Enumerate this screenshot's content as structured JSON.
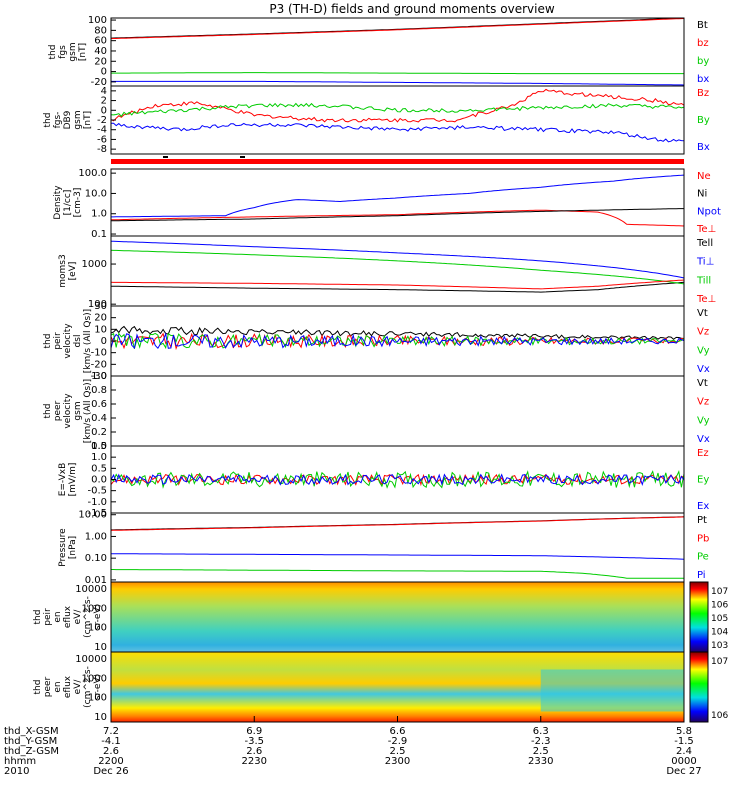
{
  "title": "P3 (TH-D) fields and ground moments overview",
  "colors": {
    "black": "#000000",
    "red": "#ff0000",
    "green": "#00cc00",
    "blue": "#0000ff",
    "darkred": "#8b0000"
  },
  "chart_data": [
    {
      "type": "line",
      "ylabel": [
        "thd",
        "fgs",
        "gsm",
        "[nT]"
      ],
      "yticks": [
        -20,
        0,
        20,
        40,
        60,
        80,
        100
      ],
      "ylim": [
        -28,
        104
      ],
      "series": [
        {
          "name": "Bt",
          "color": "#000000",
          "x": [
            0,
            1,
            2,
            3,
            4
          ],
          "y": [
            65,
            73,
            82,
            93,
            104
          ]
        },
        {
          "name": "bz",
          "color": "#ff0000",
          "x": [
            0,
            1,
            2,
            3,
            4
          ],
          "y": [
            64,
            72,
            81,
            92,
            103
          ]
        },
        {
          "name": "by",
          "color": "#00cc00",
          "x": [
            0,
            1,
            2,
            3,
            4
          ],
          "y": [
            -3,
            -2,
            -3,
            -4,
            -4
          ]
        },
        {
          "name": "bx",
          "color": "#0000ff",
          "x": [
            0,
            1,
            2,
            3,
            4
          ],
          "y": [
            -19,
            -19,
            -21,
            -23,
            -26
          ]
        }
      ]
    },
    {
      "type": "line",
      "ylabel": [
        "thd",
        "fgs-",
        "DB9",
        "gsm",
        "[nT]"
      ],
      "yticks": [
        -8,
        -6,
        -4,
        -2,
        0,
        2,
        4
      ],
      "ylim": [
        -9,
        5
      ],
      "series": [
        {
          "name": "Bz",
          "color": "#ff0000",
          "x": [
            0,
            0.3,
            0.6,
            1,
            1.5,
            2,
            2.4,
            2.8,
            3,
            3.4,
            3.8,
            4
          ],
          "y": [
            -2,
            1,
            1.5,
            -1,
            -2,
            -2,
            -2,
            1,
            4,
            3,
            2,
            1
          ]
        },
        {
          "name": "By",
          "color": "#00cc00",
          "x": [
            0,
            0.5,
            1,
            1.5,
            2,
            2.5,
            3,
            3.5,
            4
          ],
          "y": [
            -1,
            0,
            1,
            1,
            0,
            0,
            0.5,
            1,
            0.5
          ]
        },
        {
          "name": "Bx",
          "color": "#0000ff",
          "x": [
            0,
            0.5,
            0.8,
            1.2,
            2,
            2.5,
            3,
            3.5,
            3.8,
            4
          ],
          "y": [
            -3,
            -4,
            -3,
            -3,
            -4,
            -3.5,
            -4,
            -4.5,
            -6,
            -6.5
          ]
        }
      ]
    },
    {
      "type": "line",
      "ylabel": [
        "Density",
        "[1/cc]",
        "[cm-3]"
      ],
      "yticks": [
        "0.1",
        "1.0",
        "10.0",
        "100.0"
      ],
      "ylim": [
        0.08,
        160
      ],
      "log": true,
      "series": [
        {
          "name": "Ne",
          "color": "#ff0000",
          "x": [
            0,
            1,
            2,
            3,
            3.4,
            3.6,
            4
          ],
          "y": [
            0.5,
            0.7,
            0.9,
            1.5,
            1.2,
            0.3,
            0.25
          ]
        },
        {
          "name": "Ni",
          "color": "#000000",
          "x": [
            0,
            1,
            2,
            3,
            4
          ],
          "y": [
            0.45,
            0.55,
            0.8,
            1.3,
            1.8
          ]
        },
        {
          "name": "Npot",
          "color": "#0000ff",
          "x": [
            0,
            0.8,
            1.0,
            1.3,
            1.6,
            2.0,
            2.5,
            3.0,
            3.5,
            4.0
          ],
          "y": [
            0.7,
            0.8,
            2.0,
            5.0,
            4.0,
            6.0,
            10.0,
            20.0,
            40.0,
            80.0
          ]
        },
        {
          "name": "Te⊥",
          "color": "#ff0000",
          "x": [],
          "y": []
        }
      ]
    },
    {
      "type": "line",
      "ylabel": [
        "moms3",
        "[eV]"
      ],
      "yticks": [
        "100",
        "1000"
      ],
      "ylim": [
        90,
        5000
      ],
      "log": true,
      "series": [
        {
          "name": "Tell",
          "color": "#000000",
          "x": [
            0,
            1,
            2,
            3,
            3.4,
            4
          ],
          "y": [
            280,
            250,
            230,
            200,
            230,
            350
          ]
        },
        {
          "name": "Ti⊥",
          "color": "#0000ff",
          "x": [
            0,
            1,
            2,
            3,
            4
          ],
          "y": [
            3700,
            2700,
            1900,
            1200,
            450
          ]
        },
        {
          "name": "Till",
          "color": "#00cc00",
          "x": [
            0,
            1,
            2,
            3,
            4
          ],
          "y": [
            2200,
            1700,
            1200,
            700,
            320
          ]
        },
        {
          "name": "Te⊥",
          "color": "#ff0000",
          "x": [
            0,
            1,
            2,
            3,
            3.4,
            4
          ],
          "y": [
            350,
            330,
            300,
            240,
            280,
            400
          ]
        }
      ]
    },
    {
      "type": "line",
      "ylabel": [
        "thd",
        "peir",
        "velocity",
        "dsl",
        "[km/s (All Qs)]"
      ],
      "yticks": [
        -30,
        -20,
        -10,
        0,
        10,
        20,
        30
      ],
      "ylim": [
        -30,
        30
      ],
      "series": [
        {
          "name": "Vt",
          "color": "#000000",
          "x": [],
          "y": []
        },
        {
          "name": "Vz",
          "color": "#ff0000",
          "x": [],
          "y": []
        },
        {
          "name": "Vy",
          "color": "#00cc00",
          "x": [],
          "y": []
        },
        {
          "name": "Vx",
          "color": "#0000ff",
          "x": [],
          "y": []
        }
      ]
    },
    {
      "type": "line",
      "ylabel": [
        "thd",
        "peer",
        "velocity",
        "gsm",
        "[km/s (All Qs)]"
      ],
      "yticks": [
        "0.0",
        "0.2",
        "0.4",
        "0.6",
        "0.8",
        "1.0"
      ],
      "ylim": [
        0,
        1
      ],
      "series": [
        {
          "name": "Vt",
          "color": "#000000",
          "x": [],
          "y": []
        },
        {
          "name": "Vz",
          "color": "#ff0000",
          "x": [],
          "y": []
        },
        {
          "name": "Vy",
          "color": "#00cc00",
          "x": [],
          "y": []
        },
        {
          "name": "Vx",
          "color": "#0000ff",
          "x": [],
          "y": []
        }
      ]
    },
    {
      "type": "line",
      "ylabel": [
        "E=-VxB",
        "[mV/m]"
      ],
      "yticks": [
        "-1.5",
        "-1.0",
        "-0.5",
        "0.0",
        "0.5",
        "1.0",
        "1.5"
      ],
      "ylim": [
        -1.5,
        1.5
      ],
      "series": [
        {
          "name": "Ez",
          "color": "#ff0000",
          "x": [],
          "y": []
        },
        {
          "name": "Ey",
          "color": "#00cc00",
          "x": [],
          "y": []
        },
        {
          "name": "Ex",
          "color": "#0000ff",
          "x": [],
          "y": []
        }
      ]
    },
    {
      "type": "line",
      "ylabel": [
        "Pressure",
        "[nPa]"
      ],
      "yticks": [
        "0.01",
        "0.10",
        "1.00",
        "10.00"
      ],
      "ylim": [
        0.008,
        12
      ],
      "log": true,
      "series": [
        {
          "name": "Pt",
          "color": "#000000",
          "x": [
            0,
            1,
            2,
            3,
            4
          ],
          "y": [
            2.0,
            2.6,
            3.6,
            5.2,
            8.0
          ]
        },
        {
          "name": "Pb",
          "color": "#ff0000",
          "x": [
            0,
            1,
            2,
            3,
            4
          ],
          "y": [
            1.9,
            2.5,
            3.5,
            5.1,
            7.9
          ]
        },
        {
          "name": "Pe",
          "color": "#00cc00",
          "x": [
            0,
            1,
            2,
            3,
            3.3,
            3.6,
            4
          ],
          "y": [
            0.03,
            0.028,
            0.026,
            0.025,
            0.02,
            0.012,
            0.012
          ]
        },
        {
          "name": "Pi",
          "color": "#0000ff",
          "x": [
            0,
            1,
            2,
            3,
            4
          ],
          "y": [
            0.16,
            0.15,
            0.14,
            0.13,
            0.09
          ]
        }
      ]
    },
    {
      "type": "heatmap",
      "ylabel": [
        "thd",
        "peir",
        "en",
        "eflux",
        "eV/",
        "(cm^2-s-",
        "sr-eV)"
      ],
      "yticks": [
        "10",
        "100",
        "1000",
        "10000"
      ],
      "colorbar_ticks": [
        "10^3",
        "10^4",
        "10^5",
        "10^6",
        "10^7"
      ]
    },
    {
      "type": "heatmap",
      "ylabel": [
        "thd",
        "peer",
        "en",
        "eflux",
        "eV/",
        "(cm^2-s-",
        "sr-eV)"
      ],
      "yticks": [
        "10",
        "100",
        "1000",
        "10000"
      ],
      "colorbar_ticks": [
        "10^6",
        "10^7"
      ]
    }
  ],
  "xaxis": {
    "row_labels": [
      "thd_X-GSM",
      "thd_Y-GSM",
      "thd_Z-GSM",
      "hhmm",
      "2010"
    ],
    "ticks": [
      {
        "X": "7.2",
        "Y": "-4.1",
        "Z": "2.6",
        "hhmm": "2200",
        "date": "Dec 26"
      },
      {
        "X": "6.9",
        "Y": "-3.5",
        "Z": "2.6",
        "hhmm": "2230",
        "date": ""
      },
      {
        "X": "6.6",
        "Y": "-2.9",
        "Z": "2.5",
        "hhmm": "2300",
        "date": ""
      },
      {
        "X": "6.3",
        "Y": "-2.3",
        "Z": "2.5",
        "hhmm": "2330",
        "date": ""
      },
      {
        "X": "5.8",
        "Y": "-1.5",
        "Z": "2.4",
        "hhmm": "0000",
        "date": "Dec 27"
      }
    ]
  }
}
